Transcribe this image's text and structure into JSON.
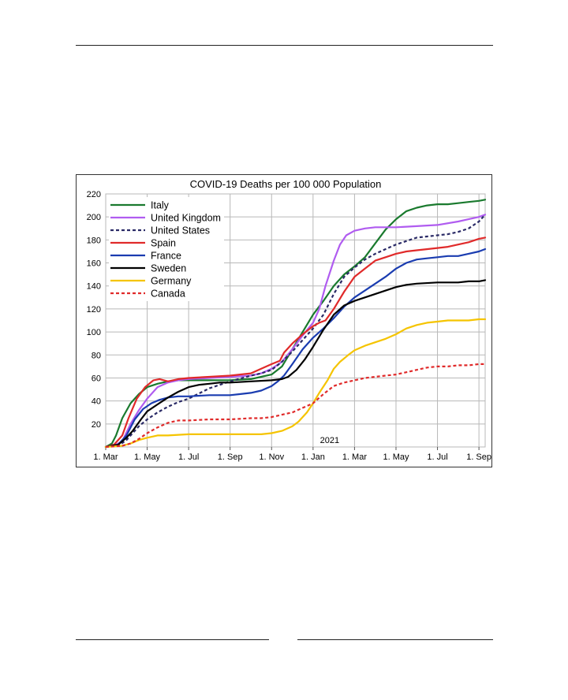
{
  "chart_data": {
    "type": "line",
    "title": "COVID-19 Deaths per 100 000 Population",
    "xlabel": "",
    "ylabel": "",
    "ylim": [
      0,
      220
    ],
    "yticks": [
      20,
      40,
      60,
      80,
      100,
      120,
      140,
      160,
      180,
      200,
      220
    ],
    "xlim": [
      0,
      18.3
    ],
    "xtick_positions": [
      0,
      2,
      4,
      6,
      8,
      10,
      12,
      14,
      16,
      18
    ],
    "xtick_labels": [
      "1. Mar",
      "1. May",
      "1. Jul",
      "1. Sep",
      "1. Nov",
      "1. Jan",
      "1. Mar",
      "1. May",
      "1. Jul",
      "1. Sep"
    ],
    "annotation": {
      "text": "2021",
      "x": 10.8,
      "y": 6
    },
    "grid": true,
    "legend_position": "top-left",
    "series": [
      {
        "name": "Italy",
        "color": "#1a7a2e",
        "dash": "solid",
        "points": [
          [
            0,
            0
          ],
          [
            0.3,
            3
          ],
          [
            0.5,
            10
          ],
          [
            0.8,
            25
          ],
          [
            1.2,
            38
          ],
          [
            1.6,
            46
          ],
          [
            2,
            52
          ],
          [
            2.5,
            55
          ],
          [
            3,
            57
          ],
          [
            3.5,
            58
          ],
          [
            4,
            58
          ],
          [
            5,
            58
          ],
          [
            6,
            58
          ],
          [
            7,
            59
          ],
          [
            7.5,
            61
          ],
          [
            8,
            63
          ],
          [
            8.5,
            70
          ],
          [
            9,
            85
          ],
          [
            9.5,
            100
          ],
          [
            10,
            115
          ],
          [
            10.5,
            127
          ],
          [
            11,
            140
          ],
          [
            11.5,
            150
          ],
          [
            12,
            157
          ],
          [
            12.5,
            165
          ],
          [
            13,
            177
          ],
          [
            13.5,
            189
          ],
          [
            14,
            198
          ],
          [
            14.5,
            205
          ],
          [
            15,
            208
          ],
          [
            15.5,
            210
          ],
          [
            16,
            211
          ],
          [
            16.5,
            211
          ],
          [
            17,
            212
          ],
          [
            17.5,
            213
          ],
          [
            18,
            214
          ],
          [
            18.3,
            215
          ]
        ]
      },
      {
        "name": "United Kingdom",
        "color": "#b05cf0",
        "dash": "solid",
        "points": [
          [
            0,
            0
          ],
          [
            0.5,
            2
          ],
          [
            0.8,
            5
          ],
          [
            1.2,
            20
          ],
          [
            1.6,
            32
          ],
          [
            2,
            42
          ],
          [
            2.5,
            52
          ],
          [
            3,
            56
          ],
          [
            3.5,
            58
          ],
          [
            4,
            59
          ],
          [
            5,
            60
          ],
          [
            6,
            61
          ],
          [
            7,
            62
          ],
          [
            7.5,
            64
          ],
          [
            8,
            68
          ],
          [
            8.5,
            74
          ],
          [
            9,
            85
          ],
          [
            9.5,
            97
          ],
          [
            10,
            108
          ],
          [
            10.3,
            120
          ],
          [
            10.6,
            140
          ],
          [
            11,
            162
          ],
          [
            11.3,
            176
          ],
          [
            11.6,
            184
          ],
          [
            12,
            188
          ],
          [
            12.5,
            190
          ],
          [
            13,
            191
          ],
          [
            14,
            191
          ],
          [
            15,
            192
          ],
          [
            16,
            193
          ],
          [
            17,
            196
          ],
          [
            17.5,
            198
          ],
          [
            18,
            200
          ],
          [
            18.3,
            202
          ]
        ]
      },
      {
        "name": "United States",
        "color": "#2a2a66",
        "dash": "4,3",
        "points": [
          [
            0,
            0
          ],
          [
            0.7,
            2
          ],
          [
            1,
            6
          ],
          [
            1.3,
            12
          ],
          [
            1.6,
            18
          ],
          [
            2,
            24
          ],
          [
            2.5,
            30
          ],
          [
            3,
            35
          ],
          [
            3.5,
            39
          ],
          [
            4,
            42
          ],
          [
            5,
            51
          ],
          [
            6,
            57
          ],
          [
            7,
            62
          ],
          [
            7.5,
            64
          ],
          [
            8,
            67
          ],
          [
            8.5,
            74
          ],
          [
            9,
            83
          ],
          [
            9.5,
            93
          ],
          [
            10,
            103
          ],
          [
            10.5,
            115
          ],
          [
            11,
            133
          ],
          [
            11.5,
            148
          ],
          [
            12,
            156
          ],
          [
            12.5,
            163
          ],
          [
            13,
            168
          ],
          [
            13.5,
            172
          ],
          [
            14,
            176
          ],
          [
            14.5,
            179
          ],
          [
            15,
            182
          ],
          [
            15.5,
            183
          ],
          [
            16,
            184
          ],
          [
            16.5,
            185
          ],
          [
            17,
            187
          ],
          [
            17.5,
            190
          ],
          [
            18,
            196
          ],
          [
            18.3,
            202
          ]
        ]
      },
      {
        "name": "Spain",
        "color": "#e02a2a",
        "dash": "solid",
        "points": [
          [
            0,
            0
          ],
          [
            0.4,
            2
          ],
          [
            0.8,
            10
          ],
          [
            1.1,
            25
          ],
          [
            1.5,
            42
          ],
          [
            1.9,
            52
          ],
          [
            2.3,
            58
          ],
          [
            2.6,
            59
          ],
          [
            3,
            57
          ],
          [
            3.5,
            59
          ],
          [
            4,
            60
          ],
          [
            5,
            61
          ],
          [
            6,
            62
          ],
          [
            7,
            64
          ],
          [
            7.5,
            68
          ],
          [
            8,
            72
          ],
          [
            8.4,
            75
          ],
          [
            8.6,
            82
          ],
          [
            9,
            90
          ],
          [
            9.5,
            98
          ],
          [
            10,
            105
          ],
          [
            10.3,
            108
          ],
          [
            10.6,
            110
          ],
          [
            11,
            120
          ],
          [
            11.5,
            135
          ],
          [
            12,
            148
          ],
          [
            12.5,
            155
          ],
          [
            13,
            162
          ],
          [
            13.5,
            165
          ],
          [
            14,
            168
          ],
          [
            14.5,
            170
          ],
          [
            15,
            171
          ],
          [
            16,
            173
          ],
          [
            16.5,
            174
          ],
          [
            17,
            176
          ],
          [
            17.5,
            178
          ],
          [
            18,
            181
          ],
          [
            18.3,
            182
          ]
        ]
      },
      {
        "name": "France",
        "color": "#1a3cb0",
        "dash": "solid",
        "points": [
          [
            0,
            0
          ],
          [
            0.6,
            2
          ],
          [
            1,
            10
          ],
          [
            1.4,
            24
          ],
          [
            1.8,
            33
          ],
          [
            2.2,
            38
          ],
          [
            2.6,
            41
          ],
          [
            3,
            43
          ],
          [
            3.5,
            44
          ],
          [
            4,
            44
          ],
          [
            5,
            45
          ],
          [
            6,
            45
          ],
          [
            6.5,
            46
          ],
          [
            7,
            47
          ],
          [
            7.5,
            49
          ],
          [
            8,
            53
          ],
          [
            8.3,
            57
          ],
          [
            8.6,
            62
          ],
          [
            9,
            72
          ],
          [
            9.5,
            85
          ],
          [
            10,
            95
          ],
          [
            10.5,
            103
          ],
          [
            11,
            112
          ],
          [
            11.5,
            122
          ],
          [
            12,
            130
          ],
          [
            12.5,
            136
          ],
          [
            13,
            142
          ],
          [
            13.5,
            148
          ],
          [
            14,
            155
          ],
          [
            14.5,
            160
          ],
          [
            15,
            163
          ],
          [
            15.5,
            164
          ],
          [
            16,
            165
          ],
          [
            16.5,
            166
          ],
          [
            17,
            166
          ],
          [
            17.5,
            168
          ],
          [
            18,
            170
          ],
          [
            18.3,
            172
          ]
        ]
      },
      {
        "name": "Sweden",
        "color": "#000000",
        "dash": "solid",
        "points": [
          [
            0,
            0
          ],
          [
            0.6,
            2
          ],
          [
            1,
            8
          ],
          [
            1.3,
            14
          ],
          [
            1.7,
            24
          ],
          [
            2,
            31
          ],
          [
            2.5,
            37
          ],
          [
            3,
            43
          ],
          [
            3.5,
            48
          ],
          [
            4,
            52
          ],
          [
            4.5,
            54
          ],
          [
            5,
            55
          ],
          [
            5.5,
            56
          ],
          [
            6,
            56
          ],
          [
            7,
            57
          ],
          [
            8,
            58
          ],
          [
            8.5,
            59
          ],
          [
            8.8,
            61
          ],
          [
            9.2,
            67
          ],
          [
            9.6,
            76
          ],
          [
            10,
            87
          ],
          [
            10.5,
            102
          ],
          [
            11,
            115
          ],
          [
            11.5,
            123
          ],
          [
            12,
            127
          ],
          [
            12.5,
            130
          ],
          [
            13,
            133
          ],
          [
            13.5,
            136
          ],
          [
            14,
            139
          ],
          [
            14.5,
            141
          ],
          [
            15,
            142
          ],
          [
            16,
            143
          ],
          [
            17,
            143
          ],
          [
            17.5,
            144
          ],
          [
            18,
            144
          ],
          [
            18.3,
            145
          ]
        ]
      },
      {
        "name": "Germany",
        "color": "#f5c400",
        "dash": "solid",
        "points": [
          [
            0,
            0
          ],
          [
            0.8,
            1
          ],
          [
            1.2,
            3
          ],
          [
            1.6,
            6
          ],
          [
            2,
            8
          ],
          [
            2.5,
            10
          ],
          [
            3,
            10
          ],
          [
            4,
            11
          ],
          [
            5,
            11
          ],
          [
            6,
            11
          ],
          [
            7,
            11
          ],
          [
            7.5,
            11
          ],
          [
            8,
            12
          ],
          [
            8.5,
            14
          ],
          [
            9,
            18
          ],
          [
            9.3,
            22
          ],
          [
            9.7,
            30
          ],
          [
            10,
            38
          ],
          [
            10.3,
            47
          ],
          [
            10.7,
            58
          ],
          [
            11,
            68
          ],
          [
            11.3,
            74
          ],
          [
            11.7,
            80
          ],
          [
            12,
            84
          ],
          [
            12.5,
            88
          ],
          [
            13,
            91
          ],
          [
            13.5,
            94
          ],
          [
            14,
            98
          ],
          [
            14.5,
            103
          ],
          [
            15,
            106
          ],
          [
            15.5,
            108
          ],
          [
            16,
            109
          ],
          [
            16.5,
            110
          ],
          [
            17,
            110
          ],
          [
            17.5,
            110
          ],
          [
            18,
            111
          ],
          [
            18.3,
            111
          ]
        ]
      },
      {
        "name": "Canada",
        "color": "#e02a2a",
        "dash": "4,3",
        "points": [
          [
            0,
            0
          ],
          [
            0.8,
            1
          ],
          [
            1.2,
            3
          ],
          [
            1.6,
            7
          ],
          [
            2,
            12
          ],
          [
            2.5,
            17
          ],
          [
            3,
            21
          ],
          [
            3.5,
            23
          ],
          [
            4,
            23
          ],
          [
            5,
            24
          ],
          [
            6,
            24
          ],
          [
            7,
            25
          ],
          [
            7.5,
            25
          ],
          [
            8,
            26
          ],
          [
            8.5,
            28
          ],
          [
            9,
            30
          ],
          [
            9.5,
            34
          ],
          [
            10,
            38
          ],
          [
            10.5,
            46
          ],
          [
            11,
            53
          ],
          [
            11.5,
            56
          ],
          [
            12,
            58
          ],
          [
            12.5,
            60
          ],
          [
            13,
            61
          ],
          [
            13.5,
            62
          ],
          [
            14,
            63
          ],
          [
            14.5,
            65
          ],
          [
            15,
            67
          ],
          [
            15.5,
            69
          ],
          [
            16,
            70
          ],
          [
            16.5,
            70
          ],
          [
            17,
            71
          ],
          [
            17.5,
            71
          ],
          [
            18,
            72
          ],
          [
            18.3,
            72
          ]
        ]
      }
    ]
  }
}
